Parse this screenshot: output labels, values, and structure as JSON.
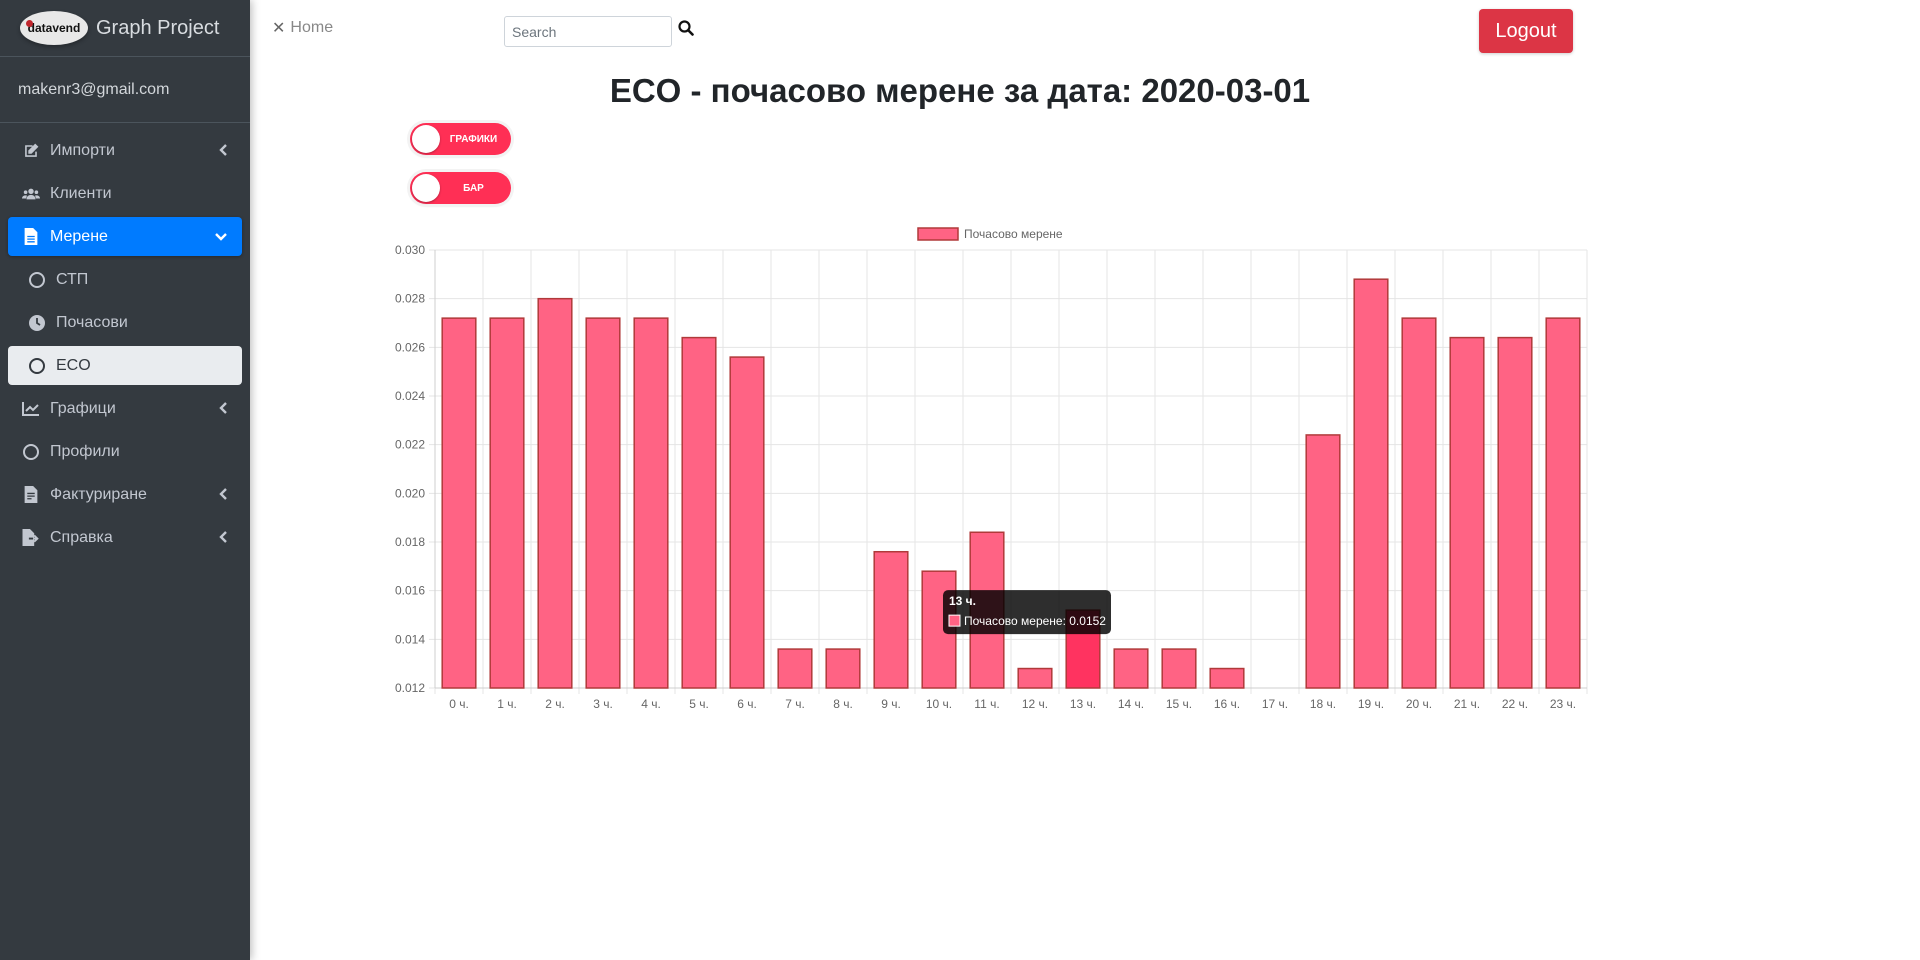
{
  "sidebar": {
    "brand_logo_text": "datavend",
    "brand_text": "Graph Project",
    "user_email": "makenr3@gmail.com",
    "items": [
      {
        "label": "Импорти",
        "icon": "edit-icon"
      },
      {
        "label": "Клиенти",
        "icon": "users-icon"
      },
      {
        "label": "Мерене",
        "icon": "file-icon"
      },
      {
        "label": "СТП",
        "icon": "circle-icon"
      },
      {
        "label": "Почасови",
        "icon": "clock-icon"
      },
      {
        "label": "ECO",
        "icon": "circle-icon"
      },
      {
        "label": "Графици",
        "icon": "chart-line-icon"
      },
      {
        "label": "Профили",
        "icon": "circle-icon"
      },
      {
        "label": "Фактуриране",
        "icon": "file-invoice-icon"
      },
      {
        "label": "Справка",
        "icon": "file-export-icon"
      }
    ]
  },
  "header": {
    "home_label": "Home",
    "search_placeholder": "Search",
    "logout_label": "Logout"
  },
  "page": {
    "title": "ECO - почасово мерене за дата: 2020-03-01",
    "toggle_graphs": "ГРАФИКИ",
    "toggle_bar": "БАР"
  },
  "colors": {
    "sidebar_bg": "#343a40",
    "accent": "#007bff",
    "danger": "#dc3545",
    "bar_fill": "#ff6384",
    "bar_border": "#b03a3a",
    "bar_hover": "#ff3360"
  },
  "chart_data": {
    "type": "bar",
    "categories": [
      "0 ч.",
      "1 ч.",
      "2 ч.",
      "3 ч.",
      "4 ч.",
      "5 ч.",
      "6 ч.",
      "7 ч.",
      "8 ч.",
      "9 ч.",
      "10 ч.",
      "11 ч.",
      "12 ч.",
      "13 ч.",
      "14 ч.",
      "15 ч.",
      "16 ч.",
      "17 ч.",
      "18 ч.",
      "19 ч.",
      "20 ч.",
      "21 ч.",
      "22 ч.",
      "23 ч."
    ],
    "series": [
      {
        "name": "Почасово мерене",
        "values": [
          0.0272,
          0.0272,
          0.028,
          0.0272,
          0.0272,
          0.0264,
          0.0256,
          0.0136,
          0.0136,
          0.0176,
          0.0168,
          0.0184,
          0.0128,
          0.0152,
          0.0136,
          0.0136,
          0.0128,
          0.012,
          0.0224,
          0.0288,
          0.0272,
          0.0264,
          0.0264,
          0.0272
        ]
      }
    ],
    "ylim": [
      0.012,
      0.03
    ],
    "yticks": [
      "0.030",
      "0.028",
      "0.026",
      "0.024",
      "0.022",
      "0.020",
      "0.018",
      "0.016",
      "0.014",
      "0.012"
    ],
    "grid": true,
    "legend": "top-center",
    "tooltip": {
      "title": "13 ч.",
      "text": "Почасово мерене: 0.0152"
    }
  }
}
